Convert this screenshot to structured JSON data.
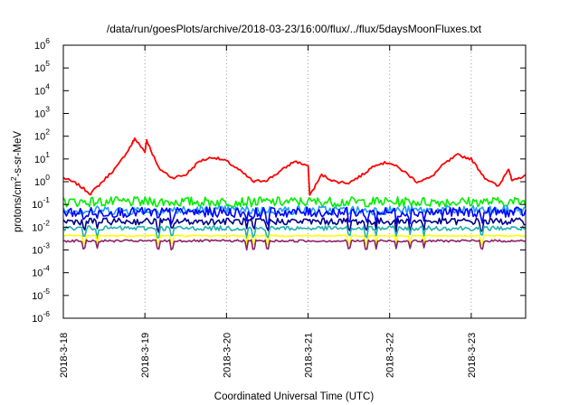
{
  "chart_data": {
    "type": "line",
    "title": "/data/run/goesPlots/archive/2018-03-23/16:00/flux/../flux/5daysMoonFluxes.txt",
    "xlabel": "Coordinated Universal Time (UTC)",
    "ylabel": "protons/cm2-s-sr-MeV",
    "ylabel_parts": {
      "pre": "protons/cm",
      "sup": "2",
      "post": "-s-sr-MeV"
    },
    "y_scale": "log",
    "ylim": [
      1e-06,
      1000000.0
    ],
    "y_ticks": [
      {
        "value": 1e-06,
        "base": "10",
        "exp": "-6"
      },
      {
        "value": 1e-05,
        "base": "10",
        "exp": "-5"
      },
      {
        "value": 0.0001,
        "base": "10",
        "exp": "-4"
      },
      {
        "value": 0.001,
        "base": "10",
        "exp": "-3"
      },
      {
        "value": 0.01,
        "base": "10",
        "exp": "-2"
      },
      {
        "value": 0.1,
        "base": "10",
        "exp": "-1"
      },
      {
        "value": 1,
        "base": "10",
        "exp": "0"
      },
      {
        "value": 10.0,
        "base": "10",
        "exp": "1"
      },
      {
        "value": 100.0,
        "base": "10",
        "exp": "2"
      },
      {
        "value": 1000.0,
        "base": "10",
        "exp": "3"
      },
      {
        "value": 10000.0,
        "base": "10",
        "exp": "4"
      },
      {
        "value": 100000.0,
        "base": "10",
        "exp": "5"
      },
      {
        "value": 1000000.0,
        "base": "10",
        "exp": "6"
      }
    ],
    "xlim": [
      "2018-03-18",
      "2018-03-23T16:00"
    ],
    "x_ticks": [
      {
        "date": "2018-03-18",
        "label": "2018-3-18"
      },
      {
        "date": "2018-03-19",
        "label": "2018-3-19"
      },
      {
        "date": "2018-03-20",
        "label": "2018-3-20"
      },
      {
        "date": "2018-03-21",
        "label": "2018-3-21"
      },
      {
        "date": "2018-03-22",
        "label": "2018-3-22"
      },
      {
        "date": "2018-03-23",
        "label": "2018-3-23"
      }
    ],
    "grid": "vertical dotted",
    "legend": "none",
    "series": [
      {
        "color": "#ff0000",
        "points": [
          [
            "2018-03-18T00:00",
            1.5
          ],
          [
            "2018-03-18T04:00",
            0.8
          ],
          [
            "2018-03-18T08:00",
            0.3
          ],
          [
            "2018-03-18T12:00",
            1.2
          ],
          [
            "2018-03-18T16:00",
            5
          ],
          [
            "2018-03-18T20:00",
            40
          ],
          [
            "2018-03-19T00:00",
            20
          ],
          [
            "2018-03-19T04:00",
            4
          ],
          [
            "2018-03-19T08:00",
            1.5
          ],
          [
            "2018-03-19T12:00",
            2
          ],
          [
            "2018-03-19T16:00",
            8
          ],
          [
            "2018-03-19T20:00",
            12
          ],
          [
            "2018-03-20T00:00",
            8
          ],
          [
            "2018-03-20T04:00",
            3
          ],
          [
            "2018-03-20T08:00",
            1
          ],
          [
            "2018-03-20T12:00",
            1.2
          ],
          [
            "2018-03-20T16:00",
            3
          ],
          [
            "2018-03-20T20:00",
            8
          ],
          [
            "2018-03-21T00:00",
            5
          ],
          [
            "2018-03-21T04:00",
            2
          ],
          [
            "2018-03-21T08:00",
            1
          ],
          [
            "2018-03-21T12:00",
            0.9
          ],
          [
            "2018-03-21T16:00",
            2
          ],
          [
            "2018-03-21T20:00",
            6
          ],
          [
            "2018-03-22T00:00",
            7
          ],
          [
            "2018-03-22T04:00",
            3
          ],
          [
            "2018-03-22T08:00",
            1
          ],
          [
            "2018-03-22T12:00",
            1.5
          ],
          [
            "2018-03-22T16:00",
            6
          ],
          [
            "2018-03-22T20:00",
            15
          ],
          [
            "2018-03-23T00:00",
            10
          ],
          [
            "2018-03-23T04:00",
            1.5
          ],
          [
            "2018-03-23T08:00",
            0.6
          ],
          [
            "2018-03-23T12:00",
            1
          ],
          [
            "2018-03-23T16:00",
            2
          ]
        ],
        "spikes": [
          [
            "2018-03-18T21:00",
            80
          ],
          [
            "2018-03-19T00:30",
            70
          ],
          [
            "2018-03-21T00:30",
            0.25
          ],
          [
            "2018-03-23T11:00",
            4
          ]
        ]
      },
      {
        "color": "#00ee00",
        "level": 0.13,
        "jitter": 0.22
      },
      {
        "color": "#1f9bff",
        "level": 0.055,
        "jitter": 0.2
      },
      {
        "color": "#0000ff",
        "level": 0.045,
        "jitter": 0.22
      },
      {
        "color": "#00008b",
        "level": 0.018,
        "jitter": 0.15
      },
      {
        "color": "#20b2aa",
        "level": 0.009,
        "jitter": 0.1
      },
      {
        "color": "#ffff00",
        "level": 0.0042,
        "jitter": 0.03
      },
      {
        "color": "#8b2268",
        "level": 0.0025,
        "jitter": 0.05
      }
    ],
    "dips": [
      "2018-03-18T06:00",
      "2018-03-18T10:00",
      "2018-03-19T04:00",
      "2018-03-19T08:00",
      "2018-03-20T06:00",
      "2018-03-20T08:00",
      "2018-03-20T12:00",
      "2018-03-21T12:00",
      "2018-03-21T17:00",
      "2018-03-21T20:00",
      "2018-03-22T02:00",
      "2018-03-22T06:00",
      "2018-03-22T10:00",
      "2018-03-23T03:00"
    ]
  }
}
